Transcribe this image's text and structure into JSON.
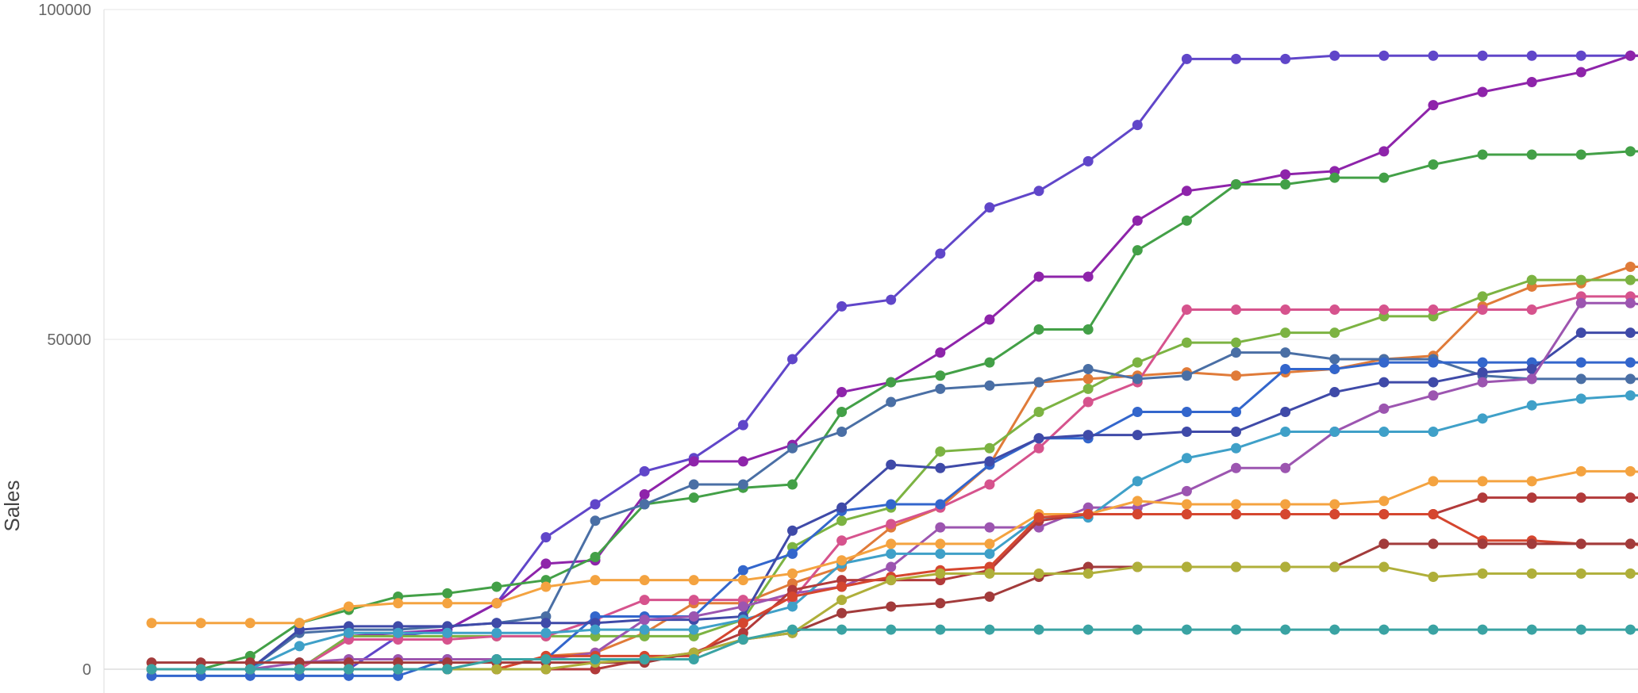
{
  "chart_data": {
    "type": "line",
    "title": "",
    "xlabel": "",
    "ylabel": "Sales",
    "ylim": [
      0,
      100000
    ],
    "yticks": [
      0,
      50000,
      100000
    ],
    "ytick_labels": [
      "0",
      "50000",
      "100000"
    ],
    "grid": true,
    "legend": "none",
    "x": [
      1,
      2,
      3,
      4,
      5,
      6,
      7,
      8,
      9,
      10,
      11,
      12,
      13,
      14,
      15,
      16,
      17,
      18,
      19,
      20,
      21,
      22,
      23,
      24,
      25,
      26,
      27,
      28,
      29,
      30,
      31,
      32
    ],
    "series": [
      {
        "color": "#6046C9",
        "values": [
          0,
          0,
          0,
          0,
          0,
          5000,
          6000,
          10000,
          20000,
          25000,
          30000,
          32000,
          37000,
          47000,
          55000,
          56000,
          63000,
          70000,
          72500,
          77000,
          82500,
          92500,
          92500,
          92500,
          93000,
          93000,
          93000,
          93000,
          93000,
          93000,
          93000,
          93000
        ]
      },
      {
        "color": "#8E24AA",
        "values": [
          0,
          0,
          0,
          0,
          5000,
          5500,
          6000,
          10000,
          16000,
          16500,
          26500,
          31500,
          31500,
          34000,
          42000,
          43500,
          48000,
          53000,
          59500,
          59500,
          68000,
          72500,
          73500,
          75000,
          75500,
          78500,
          85500,
          87500,
          89000,
          90500,
          93000,
          93000
        ]
      },
      {
        "color": "#43A047",
        "values": [
          0,
          0,
          2000,
          7000,
          9000,
          11000,
          11500,
          12500,
          13500,
          17000,
          25000,
          26000,
          27500,
          28000,
          39000,
          43500,
          44500,
          46500,
          51500,
          51500,
          63500,
          68000,
          73500,
          73500,
          74500,
          74500,
          76500,
          78000,
          78000,
          78000,
          78500,
          78500
        ]
      },
      {
        "color": "#E07B39",
        "values": [
          0,
          0,
          0,
          0,
          0,
          0,
          0,
          0,
          2000,
          2500,
          5500,
          10000,
          10000,
          13000,
          15500,
          21500,
          24500,
          31000,
          43500,
          44000,
          44500,
          45000,
          44500,
          45000,
          45500,
          47000,
          47500,
          55000,
          58000,
          58500,
          61000,
          61000
        ]
      },
      {
        "color": "#7CB342",
        "values": [
          0,
          0,
          0,
          0,
          5000,
          5000,
          5000,
          5000,
          5000,
          5000,
          5000,
          5000,
          7500,
          18500,
          22500,
          24500,
          33000,
          33500,
          39000,
          42500,
          46500,
          49500,
          49500,
          51000,
          51000,
          53500,
          53500,
          56500,
          59000,
          59000,
          59000,
          59000
        ]
      },
      {
        "color": "#D6538D",
        "values": [
          0,
          0,
          0,
          0,
          4500,
          4500,
          4500,
          5000,
          5000,
          7500,
          10500,
          10500,
          10500,
          10500,
          19500,
          22000,
          24500,
          28000,
          33500,
          40500,
          43500,
          54500,
          54500,
          54500,
          54500,
          54500,
          54500,
          54500,
          54500,
          56500,
          56500,
          56500
        ]
      },
      {
        "color": "#4A6FA5",
        "values": [
          0,
          0,
          0,
          5500,
          6000,
          6000,
          6500,
          7000,
          8000,
          22500,
          25000,
          28000,
          28000,
          33500,
          36000,
          40500,
          42500,
          43000,
          43500,
          45500,
          44000,
          44500,
          48000,
          48000,
          47000,
          47000,
          47000,
          44500,
          44000,
          44000,
          44000,
          44000
        ]
      },
      {
        "color": "#3366CC",
        "values": [
          -1000,
          -1000,
          -1000,
          -1000,
          -1000,
          -1000,
          1500,
          1500,
          1500,
          8000,
          8000,
          8000,
          15000,
          17500,
          24000,
          25000,
          25000,
          31000,
          35000,
          35000,
          39000,
          39000,
          39000,
          45500,
          45500,
          46500,
          46500,
          46500,
          46500,
          46500,
          46500,
          46500
        ]
      },
      {
        "color": "#3F4AA8",
        "values": [
          0,
          0,
          0,
          6000,
          6500,
          6500,
          6500,
          7000,
          7000,
          7000,
          7500,
          7500,
          8000,
          21000,
          24500,
          31000,
          30500,
          31500,
          35000,
          35500,
          35500,
          36000,
          36000,
          39000,
          42000,
          43500,
          43500,
          45000,
          45500,
          51000,
          51000,
          51000
        ]
      },
      {
        "color": "#9C55B0",
        "values": [
          0,
          0,
          0,
          1000,
          1500,
          1500,
          1500,
          1500,
          1500,
          2500,
          7500,
          8000,
          9500,
          11500,
          12500,
          15500,
          21500,
          21500,
          21500,
          24500,
          24500,
          27000,
          30500,
          30500,
          36000,
          39500,
          41500,
          43500,
          44000,
          55500,
          55500,
          54500
        ]
      },
      {
        "color": "#3FA0C8",
        "values": [
          0,
          0,
          0,
          3500,
          5500,
          5500,
          5500,
          5500,
          5500,
          6000,
          6000,
          6000,
          7500,
          9500,
          16000,
          17500,
          17500,
          17500,
          23000,
          23000,
          28500,
          32000,
          33500,
          36000,
          36000,
          36000,
          36000,
          38000,
          40000,
          41000,
          41500,
          41500
        ]
      },
      {
        "color": "#F4A340",
        "values": [
          7000,
          7000,
          7000,
          7000,
          9500,
          10000,
          10000,
          10000,
          12500,
          13500,
          13500,
          13500,
          13500,
          14500,
          16500,
          19000,
          19000,
          19000,
          23500,
          23500,
          25500,
          25000,
          25000,
          25000,
          25000,
          25500,
          28500,
          28500,
          28500,
          30000,
          30000,
          29500
        ]
      },
      {
        "color": "#B23A3A",
        "values": [
          0,
          0,
          0,
          0,
          0,
          0,
          0,
          0,
          0,
          0,
          1500,
          2500,
          5500,
          12000,
          13500,
          13500,
          13500,
          15000,
          22500,
          23500,
          23500,
          23500,
          23500,
          23500,
          23500,
          23500,
          23500,
          26000,
          26000,
          26000,
          26000,
          26000
        ]
      },
      {
        "color": "#D5462F",
        "values": [
          0,
          0,
          0,
          0,
          0,
          0,
          0,
          0,
          2000,
          2000,
          2000,
          2000,
          7000,
          11000,
          12500,
          14000,
          15000,
          15500,
          23000,
          23500,
          23500,
          23500,
          23500,
          23500,
          23500,
          23500,
          23500,
          19500,
          19500,
          19000,
          19000,
          18000
        ]
      },
      {
        "color": "#A23B3B",
        "values": [
          1000,
          1000,
          1000,
          1000,
          1000,
          1000,
          1000,
          1000,
          1000,
          1000,
          1000,
          2500,
          4500,
          5500,
          8500,
          9500,
          10000,
          11000,
          14000,
          15500,
          15500,
          15500,
          15500,
          15500,
          15500,
          19000,
          19000,
          19000,
          19000,
          19000,
          19000,
          19000
        ]
      },
      {
        "color": "#AFAF3A",
        "values": [
          0,
          0,
          0,
          0,
          0,
          0,
          0,
          0,
          0,
          1000,
          1500,
          2500,
          4500,
          5500,
          10500,
          13500,
          14500,
          14500,
          14500,
          14500,
          15500,
          15500,
          15500,
          15500,
          15500,
          15500,
          14000,
          14500,
          14500,
          14500,
          14500,
          14500
        ]
      },
      {
        "color": "#3AA3A3",
        "values": [
          0,
          0,
          0,
          0,
          0,
          0,
          0,
          1500,
          1500,
          1500,
          1500,
          1500,
          4500,
          6000,
          6000,
          6000,
          6000,
          6000,
          6000,
          6000,
          6000,
          6000,
          6000,
          6000,
          6000,
          6000,
          6000,
          6000,
          6000,
          6000,
          6000,
          6000
        ]
      }
    ]
  }
}
